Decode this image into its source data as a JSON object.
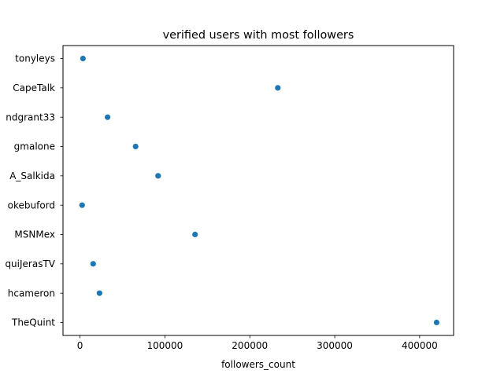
{
  "chart_data": {
    "type": "scatter",
    "title": "verified users with most followers",
    "xlabel": "followers_count",
    "ylabel": "",
    "xlim": [
      -20000,
      440000
    ],
    "xticks": [
      0,
      100000,
      200000,
      300000,
      400000
    ],
    "xtick_labels": [
      "0",
      "100000",
      "200000",
      "300000",
      "400000"
    ],
    "categories": [
      "tonyleys",
      "CapeTalk",
      "ndgrant33",
      "gmalone",
      "A_Salkida",
      "okebuford",
      "MSNMex",
      "quiJerasTV",
      "hcameron",
      "TheQuint"
    ],
    "values": [
      3500,
      233000,
      32500,
      65500,
      92000,
      2500,
      135500,
      15500,
      23000,
      420000
    ],
    "marker_color": "#1f77b4",
    "grid": false,
    "legend": "none"
  }
}
